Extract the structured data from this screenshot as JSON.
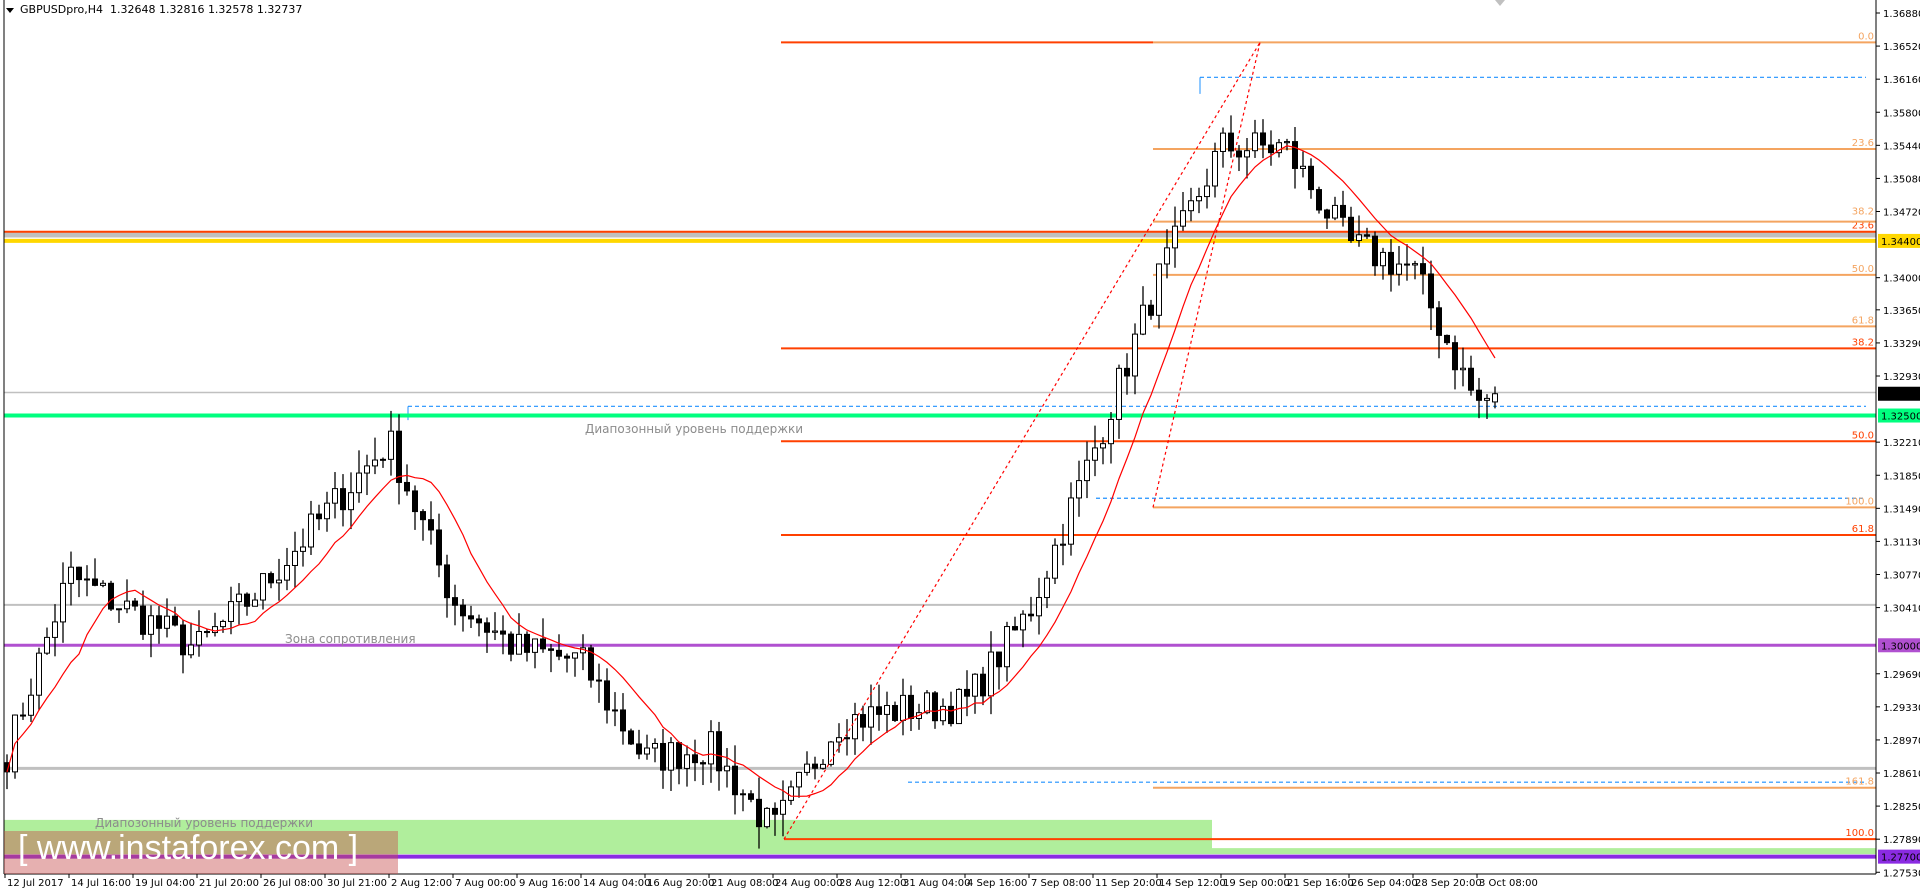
{
  "header": {
    "symbol": "GBPUSDpro,H4",
    "ohlc": "1.32648 1.32816 1.32578 1.32737",
    "menu_icon": "triangle-down-icon"
  },
  "annotations": {
    "support_upper": "Диапозонный уровень  поддержки",
    "resistance_zone": "Зона сопротивления",
    "support_lower": "Диапозонный уровень  поддержки"
  },
  "watermark": "[ www.instaforex.com ]",
  "colors": {
    "yellow_level": "#FFD700",
    "green_level": "#00FF7F",
    "purple_level": "#B050D0",
    "purple_bottom": "#8A2BE2",
    "fib_red": "#FF4000",
    "fib_orange": "#F4A460",
    "gray_level": "#C0C0C0",
    "blue_dashed": "#1E90FF",
    "ma": "#FF0000",
    "zone_green": "#B0EE9C"
  },
  "chart_data": {
    "type": "candlestick",
    "symbol": "GBPUSDpro",
    "timeframe": "H4",
    "last": {
      "open": 1.32648,
      "high": 1.32816,
      "low": 1.32578,
      "close": 1.32737
    },
    "x_ticks": [
      "12 Jul 2017",
      "14 Jul 16:00",
      "19 Jul 04:00",
      "21 Jul 20:00",
      "26 Jul 08:00",
      "30 Jul 21:00",
      "2 Aug 12:00",
      "7 Aug 00:00",
      "9 Aug 16:00",
      "14 Aug 04:00",
      "16 Aug 20:00",
      "21 Aug 08:00",
      "24 Aug 00:00",
      "28 Aug 12:00",
      "31 Aug 04:00",
      "4 Sep 16:00",
      "7 Sep 08:00",
      "11 Sep 20:00",
      "14 Sep 12:00",
      "19 Sep 00:00",
      "21 Sep 16:00",
      "26 Sep 04:00",
      "28 Sep 20:00",
      "3 Oct 08:00"
    ],
    "approx_close_at_ticks": [
      1.2876,
      1.3076,
      1.3036,
      1.2996,
      1.3062,
      1.3143,
      1.3222,
      1.3049,
      1.2996,
      1.2983,
      1.2876,
      1.2889,
      1.2797,
      1.2916,
      1.293,
      1.2936,
      1.3036,
      1.3209,
      1.3395,
      1.3542,
      1.3542,
      1.3436,
      1.3409,
      1.3263
    ],
    "y_ticks": [
      "1.36880",
      "1.36520",
      "1.36160",
      "1.35800",
      "1.35440",
      "1.35080",
      "1.34720",
      "1.34000",
      "1.33650",
      "1.33290",
      "1.32930",
      "1.32210",
      "1.31850",
      "1.31490",
      "1.31130",
      "1.30770",
      "1.30410",
      "1.29690",
      "1.29330",
      "1.28970",
      "1.28610",
      "1.28250",
      "1.27890",
      "1.27530"
    ],
    "ylim": [
      1.2753,
      1.3688
    ],
    "price_tags": [
      {
        "label": "1.34400",
        "value": 1.344,
        "color": "#FFD700"
      },
      {
        "label": "1.32737",
        "value": 1.32737,
        "color": "#000000"
      },
      {
        "label": "1.32500",
        "value": 1.325,
        "color": "#00FF7F"
      },
      {
        "label": "1.30000",
        "value": 1.3,
        "color": "#B050D0"
      },
      {
        "label": "1.27700",
        "value": 1.277,
        "color": "#8A2BE2"
      }
    ],
    "fib_red_levels": [
      {
        "label": "0.0",
        "value": 1.3656
      },
      {
        "label": "23.6",
        "value": 1.345
      },
      {
        "label": "38.2",
        "value": 1.3323
      },
      {
        "label": "50.0",
        "value": 1.3222
      },
      {
        "label": "61.8",
        "value": 1.312
      },
      {
        "label": "100.0",
        "value": 1.2789
      }
    ],
    "fib_orange_levels": [
      {
        "label": "0.0",
        "value": 1.3656
      },
      {
        "label": "23.6",
        "value": 1.354
      },
      {
        "label": "38.2",
        "value": 1.3461
      },
      {
        "label": "50.0",
        "value": 1.3403
      },
      {
        "label": "61.8",
        "value": 1.3347
      },
      {
        "label": "100.0",
        "value": 1.315
      },
      {
        "label": "161.8",
        "value": 1.2845
      }
    ],
    "indicator": "moving average",
    "grid": false
  }
}
